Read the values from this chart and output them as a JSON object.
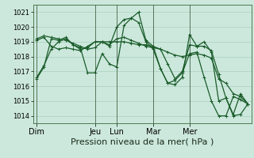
{
  "title": "",
  "xlabel": "Pression niveau de la mer( hPa )",
  "ylabel": "",
  "background_color": "#cce8dc",
  "grid_color": "#aacfbf",
  "line_color": "#1a5c2a",
  "ylim": [
    1013.5,
    1021.5
  ],
  "day_labels": [
    "Dim",
    "",
    "Jeu",
    "Lun",
    "",
    "Mar",
    "",
    "Mer"
  ],
  "series": [
    [
      1016.5,
      1017.3,
      1019.2,
      1019.1,
      1019.3,
      1018.8,
      1018.5,
      1018.6,
      1019.0,
      1019.0,
      1018.7,
      1020.0,
      1020.5,
      1020.6,
      1020.3,
      1019.0,
      1018.5,
      1017.2,
      1016.2,
      1016.4,
      1016.9,
      1018.2,
      1018.3,
      1016.6,
      1015.0,
      1014.0,
      1014.0,
      1015.3,
      1015.1,
      1014.8
    ],
    [
      1019.2,
      1019.4,
      1019.3,
      1019.2,
      1019.1,
      1018.9,
      1018.7,
      1018.5,
      1018.6,
      1019.0,
      1019.0,
      1019.0,
      1019.0,
      1018.9,
      1018.8,
      1018.8,
      1018.7,
      1018.5,
      1018.3,
      1018.1,
      1018.0,
      1018.1,
      1018.2,
      1018.1,
      1017.9,
      1016.5,
      1016.2,
      1015.5,
      1015.3,
      1014.8
    ],
    [
      1019.1,
      1019.3,
      1018.7,
      1018.5,
      1018.6,
      1018.5,
      1018.4,
      1018.7,
      1019.0,
      1019.0,
      1018.8,
      1019.2,
      1019.3,
      1019.1,
      1018.9,
      1018.7,
      1018.6,
      1018.5,
      1017.5,
      1016.5,
      1017.0,
      1018.8,
      1018.7,
      1018.7,
      1018.4,
      1016.8,
      1015.2,
      1014.0,
      1014.1,
      1014.8
    ],
    [
      1016.6,
      1017.4,
      1018.5,
      1019.0,
      1019.2,
      1018.8,
      1018.6,
      1016.9,
      1016.9,
      1018.2,
      1017.5,
      1017.3,
      1020.1,
      1020.6,
      1021.0,
      1019.1,
      1018.7,
      1017.2,
      1016.2,
      1016.1,
      1016.6,
      1019.5,
      1018.7,
      1019.0,
      1018.3,
      1015.0,
      1015.2,
      1014.1,
      1015.5,
      1014.8
    ]
  ],
  "yticks": [
    1014,
    1015,
    1016,
    1017,
    1018,
    1019,
    1020,
    1021
  ],
  "xtick_labels": [
    "Dim",
    "Jeu",
    "Lun",
    "Mar",
    "Mer"
  ],
  "xtick_positions": [
    0,
    8,
    11,
    16,
    21
  ],
  "fontsize_xlabel": 8,
  "fontsize_yticks": 6,
  "fontsize_xticks": 7,
  "line_width": 0.9,
  "marker_size": 2.5
}
